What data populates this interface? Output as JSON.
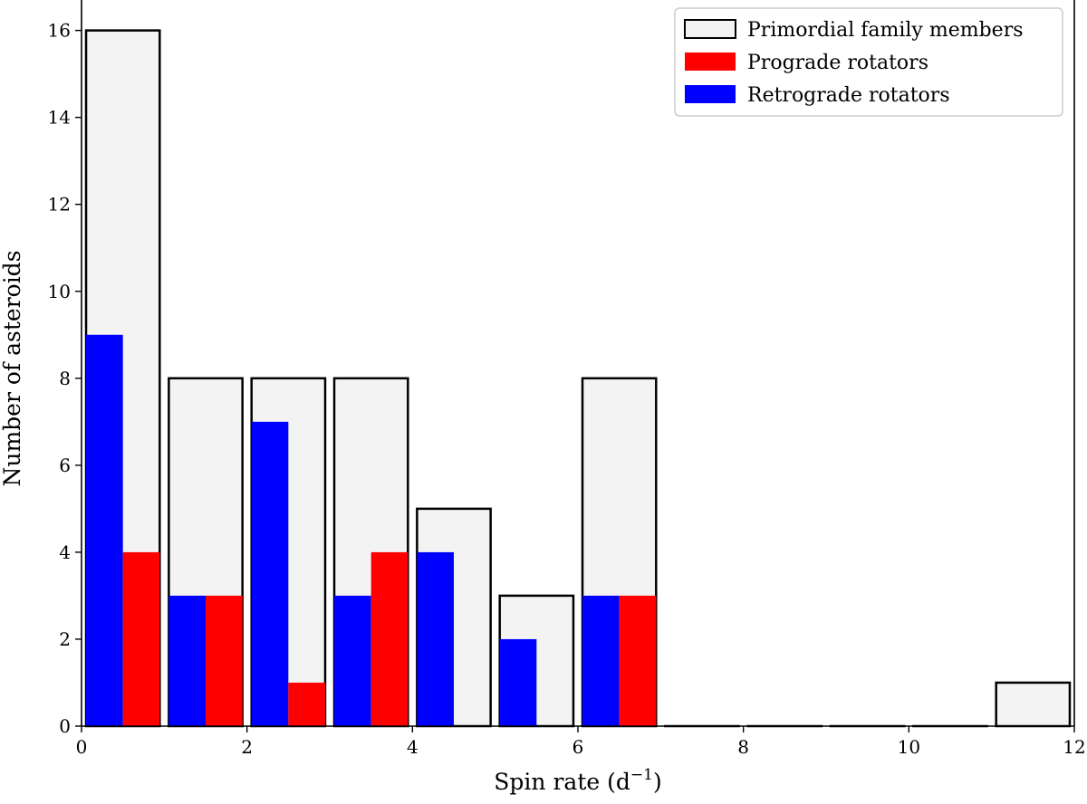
{
  "chart_data": {
    "type": "bar",
    "title": "",
    "xlabel": "Spin rate (d",
    "xlabel_sup": "−1",
    "xlabel_close": ")",
    "ylabel": "Number of asteroids",
    "xlim": [
      0,
      12
    ],
    "ylim": [
      0,
      16.7
    ],
    "xticks": [
      "0",
      "2",
      "4",
      "6",
      "8",
      "10",
      "12"
    ],
    "yticks": [
      "0",
      "2",
      "4",
      "6",
      "8",
      "10",
      "12",
      "14",
      "16"
    ],
    "bin_edges": [
      0,
      1,
      2,
      3,
      4,
      5,
      6,
      7,
      8,
      9,
      10,
      11,
      12
    ],
    "series": [
      {
        "name": "Primordial family members",
        "color": "#f3f3f3",
        "edge": "#000000",
        "values": [
          16,
          8,
          8,
          8,
          5,
          3,
          8,
          0,
          0,
          0,
          0,
          1
        ]
      },
      {
        "name": "Prograde rotators",
        "color": "#ff0000",
        "values": [
          4,
          3,
          1,
          4,
          0,
          0,
          3,
          0,
          0,
          0,
          0,
          0
        ]
      },
      {
        "name": "Retrograde rotators",
        "color": "#0000ff",
        "values": [
          9,
          3,
          7,
          3,
          4,
          2,
          3,
          0,
          0,
          0,
          0,
          0
        ]
      }
    ],
    "legend_position": "top-right"
  }
}
